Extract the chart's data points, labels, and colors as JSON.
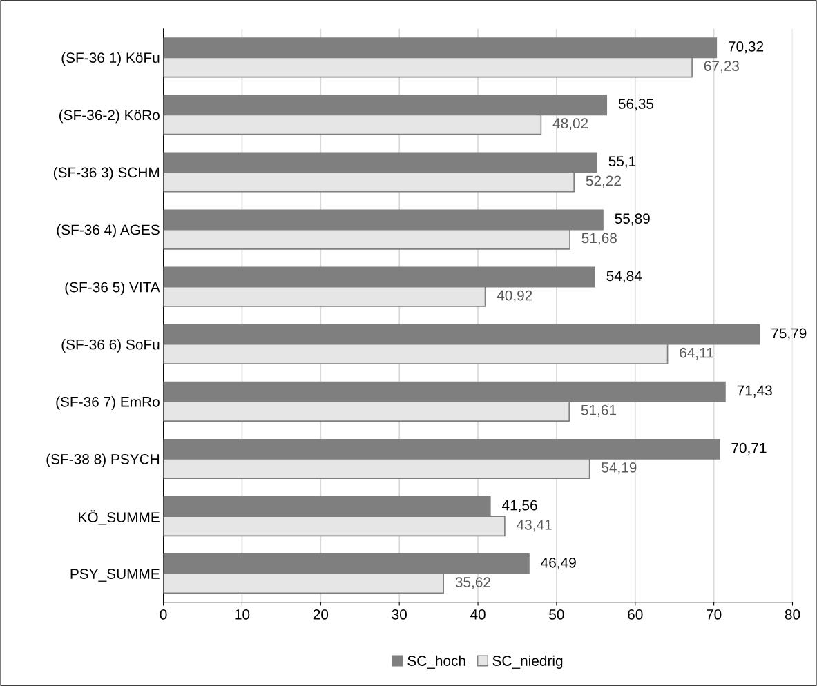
{
  "chart_data": {
    "type": "bar",
    "orientation": "horizontal",
    "categories": [
      "(SF-36 1) KöFu",
      "(SF-36-2) KöRo",
      "(SF-36 3) SCHM",
      "(SF-36 4) AGES",
      "(SF-36 5) VITA",
      "(SF-36 6) SoFu",
      "(SF-36 7) EmRo",
      "(SF-38 8) PSYCH",
      "KÖ_SUMME",
      "PSY_SUMME"
    ],
    "series": [
      {
        "name": "SC_hoch",
        "color": "#7f7f7f",
        "values": [
          70.32,
          56.35,
          55.1,
          55.89,
          54.84,
          75.79,
          71.43,
          70.71,
          41.56,
          46.49
        ],
        "value_labels": [
          "70,32",
          "56,35",
          "55,1",
          "55,89",
          "54,84",
          "75,79",
          "71,43",
          "70,71",
          "41,56",
          "46,49"
        ]
      },
      {
        "name": "SC_niedrig",
        "color": "#e7e6e6",
        "values": [
          67.23,
          48.02,
          52.22,
          51.68,
          40.92,
          64.11,
          51.61,
          54.19,
          43.41,
          35.62
        ],
        "value_labels": [
          "67,23",
          "48,02",
          "52,22",
          "51,68",
          "40,92",
          "64,11",
          "51,61",
          "54,19",
          "43,41",
          "35,62"
        ]
      }
    ],
    "xlim": [
      0,
      80
    ],
    "xticks": [
      0,
      10,
      20,
      30,
      40,
      50,
      60,
      70,
      80
    ],
    "grid": "x",
    "legend": "bottom"
  }
}
